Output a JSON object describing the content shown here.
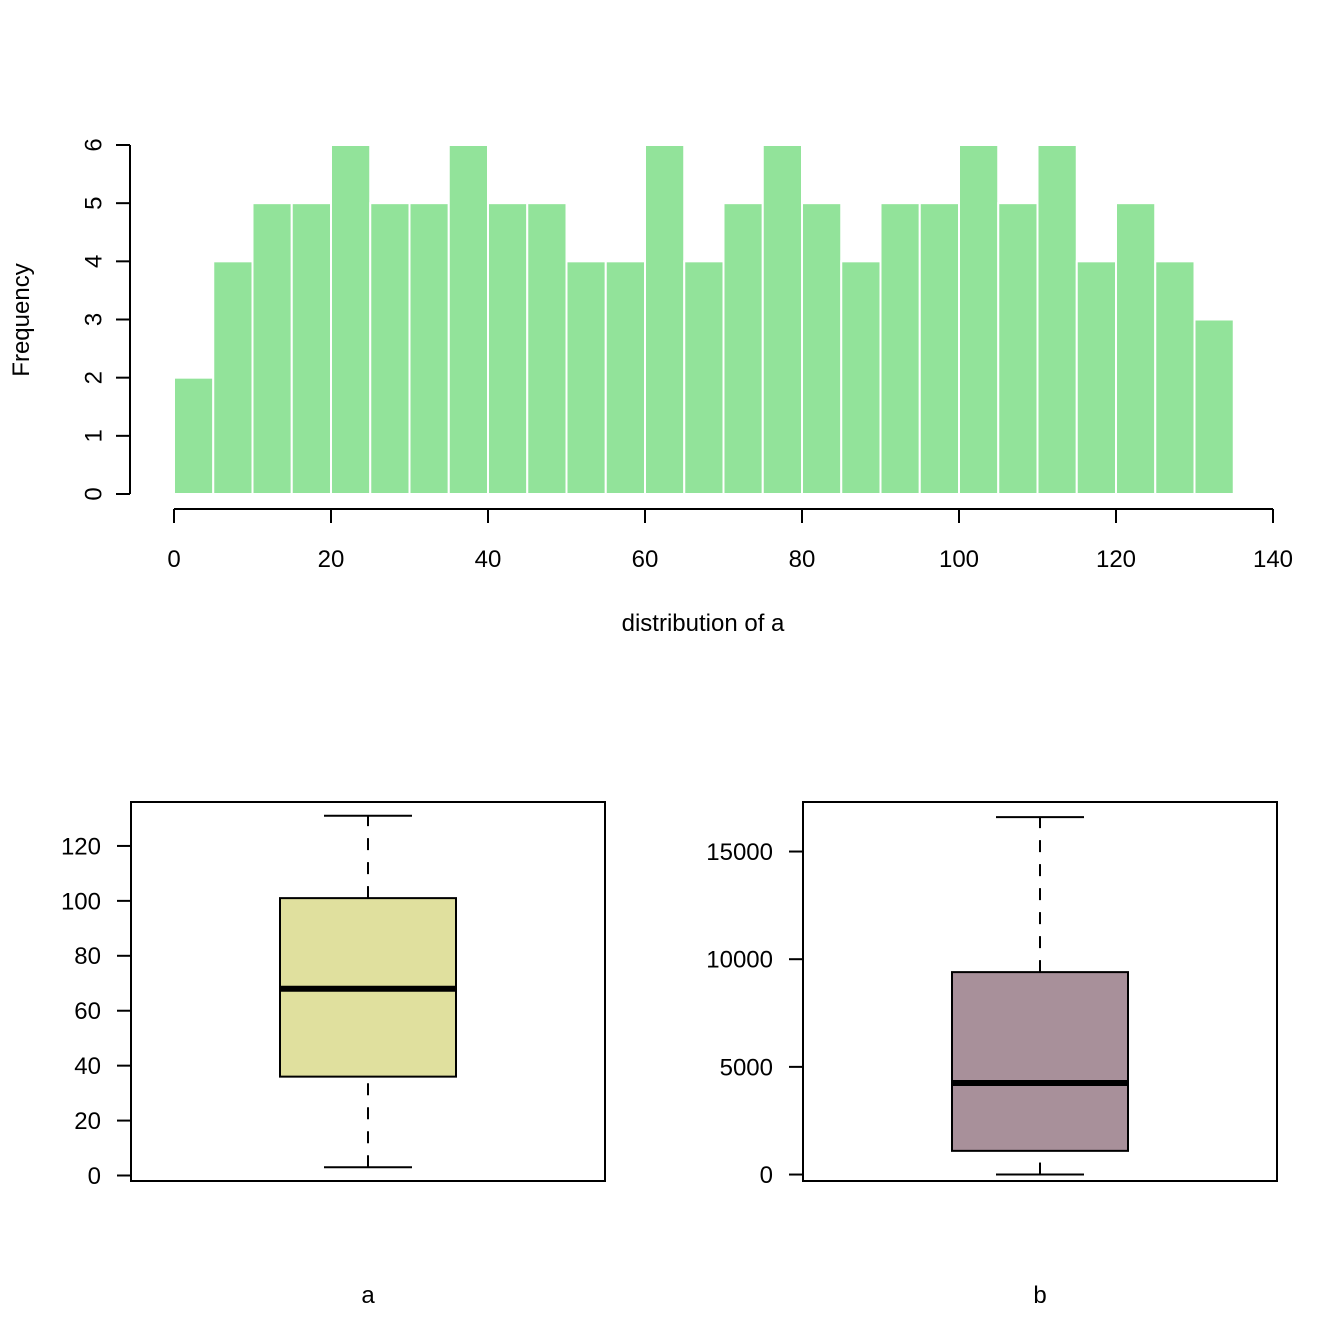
{
  "chart_data": [
    {
      "type": "bar",
      "subtype": "histogram",
      "xlabel": "distribution of a",
      "ylabel": "Frequency",
      "bin_width": 5,
      "bins": [
        {
          "from": 0,
          "to": 5,
          "count": 2
        },
        {
          "from": 5,
          "to": 10,
          "count": 4
        },
        {
          "from": 10,
          "to": 15,
          "count": 5
        },
        {
          "from": 15,
          "to": 20,
          "count": 5
        },
        {
          "from": 20,
          "to": 25,
          "count": 6
        },
        {
          "from": 25,
          "to": 30,
          "count": 5
        },
        {
          "from": 30,
          "to": 35,
          "count": 5
        },
        {
          "from": 35,
          "to": 40,
          "count": 6
        },
        {
          "from": 40,
          "to": 45,
          "count": 5
        },
        {
          "from": 45,
          "to": 50,
          "count": 5
        },
        {
          "from": 50,
          "to": 55,
          "count": 4
        },
        {
          "from": 55,
          "to": 60,
          "count": 4
        },
        {
          "from": 60,
          "to": 65,
          "count": 6
        },
        {
          "from": 65,
          "to": 70,
          "count": 4
        },
        {
          "from": 70,
          "to": 75,
          "count": 5
        },
        {
          "from": 75,
          "to": 80,
          "count": 6
        },
        {
          "from": 80,
          "to": 85,
          "count": 5
        },
        {
          "from": 85,
          "to": 90,
          "count": 4
        },
        {
          "from": 90,
          "to": 95,
          "count": 5
        },
        {
          "from": 95,
          "to": 100,
          "count": 5
        },
        {
          "from": 100,
          "to": 105,
          "count": 6
        },
        {
          "from": 105,
          "to": 110,
          "count": 5
        },
        {
          "from": 110,
          "to": 115,
          "count": 6
        },
        {
          "from": 115,
          "to": 120,
          "count": 4
        },
        {
          "from": 120,
          "to": 125,
          "count": 5
        },
        {
          "from": 125,
          "to": 130,
          "count": 4
        },
        {
          "from": 130,
          "to": 135,
          "count": 3
        }
      ],
      "xlim": [
        0,
        140
      ],
      "ylim": [
        0,
        6
      ],
      "x_ticks": [
        "0",
        "20",
        "40",
        "60",
        "80",
        "100",
        "120",
        "140"
      ],
      "y_ticks": [
        "0",
        "1",
        "2",
        "3",
        "4",
        "5",
        "6"
      ],
      "bar_color": "#92e39a",
      "bar_border_color": "#ffffff",
      "grid": false
    },
    {
      "type": "box",
      "xlabel": "a",
      "ylim": [
        -2,
        136
      ],
      "y_ticks": [
        "0",
        "20",
        "40",
        "60",
        "80",
        "100",
        "120"
      ],
      "stats": {
        "min": 3,
        "q1": 36,
        "median": 68,
        "q3": 101,
        "max": 131
      },
      "fill_color": "#e0e09e",
      "grid": false
    },
    {
      "type": "box",
      "xlabel": "b",
      "ylim": [
        -300,
        17300
      ],
      "y_ticks": [
        "0",
        "5000",
        "10000",
        "15000"
      ],
      "stats": {
        "min": 0,
        "q1": 1100,
        "median": 4250,
        "q3": 9400,
        "max": 16600
      },
      "fill_color": "#a8909a",
      "grid": false
    }
  ]
}
